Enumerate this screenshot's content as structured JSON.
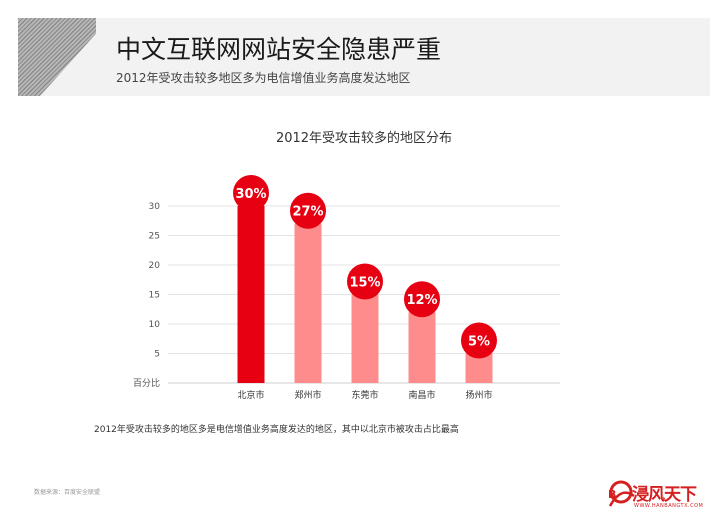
{
  "header": {
    "title": "中文互联网网站安全隐患严重",
    "subtitle": "2012年受攻击较多地区多为电信增值业务高度发达地区"
  },
  "chart_data": {
    "type": "bar",
    "title": "2012年受攻击较多的地区分布",
    "ylabel": "百分比",
    "categories": [
      "北京市",
      "郑州市",
      "东莞市",
      "南昌市",
      "扬州市"
    ],
    "values": [
      30,
      27,
      15,
      12,
      5
    ],
    "data_labels": [
      "30%",
      "27%",
      "15%",
      "12%",
      "5%"
    ],
    "ylim": [
      0,
      30
    ],
    "yticks": [
      5,
      10,
      15,
      20,
      25,
      30
    ],
    "grid": true,
    "colors": {
      "highlight": "#e60012",
      "bar": "#ff8c8c",
      "badge": "#e60012"
    },
    "highlight_index": 0
  },
  "footnote": "2012年受攻击较多的地区多是电信增值业务高度发达的地区，其中以北京市被攻击占比最高",
  "source": "数据来源：百度安全联盟",
  "logo": {
    "text": "浸风天下",
    "url": "WWW.HANBANGTX.COM"
  }
}
